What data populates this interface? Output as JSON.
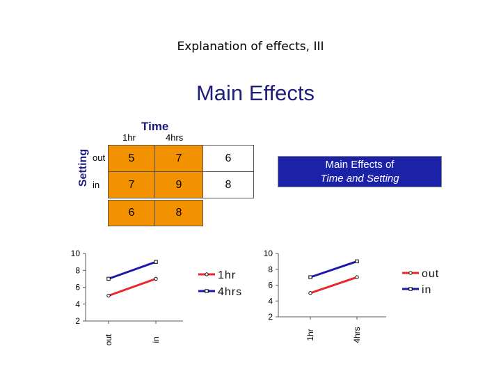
{
  "slide_title": "Explanation of effects, III",
  "main_heading": "Main Effects",
  "table": {
    "col_factor": "Time",
    "row_factor": "Setting",
    "col_headers": [
      "1hr",
      "4hrs"
    ],
    "row_headers": [
      "out",
      "in"
    ],
    "cells": [
      [
        "5",
        "7"
      ],
      [
        "7",
        "9"
      ]
    ],
    "row_means": [
      "6",
      "8"
    ],
    "col_means": [
      "6",
      "8"
    ]
  },
  "callout": {
    "line1": "Main Effects of",
    "line2": "Time and Setting"
  },
  "colors": {
    "red": "#e8262b",
    "blue": "#1a1aa8",
    "orange": "#f39200",
    "callout": "#1c22a8"
  },
  "chart_data": [
    {
      "type": "line",
      "categories": [
        "out",
        "in"
      ],
      "series": [
        {
          "name": "1hr",
          "values": [
            5,
            7
          ]
        },
        {
          "name": "4hrs",
          "values": [
            7,
            9
          ]
        }
      ],
      "y_ticks": [
        "10",
        "8",
        "6",
        "4",
        "2"
      ],
      "ylim": [
        2,
        10
      ],
      "legend": "right"
    },
    {
      "type": "line",
      "categories": [
        "1hr",
        "4hrs"
      ],
      "series": [
        {
          "name": "out",
          "values": [
            5,
            7
          ]
        },
        {
          "name": "in",
          "values": [
            7,
            9
          ]
        }
      ],
      "y_ticks": [
        "10",
        "8",
        "6",
        "4",
        "2"
      ],
      "ylim": [
        2,
        10
      ],
      "legend": "right"
    }
  ]
}
